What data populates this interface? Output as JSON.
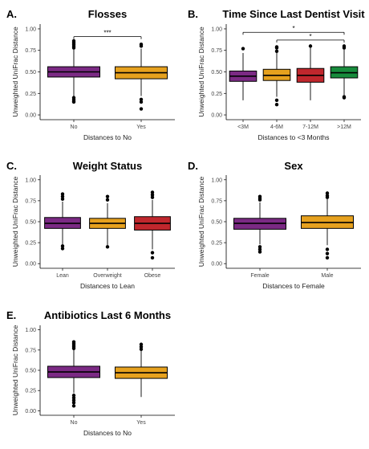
{
  "chart_data": [
    {
      "type": "box",
      "letter": "A.",
      "title": "Flosses",
      "xlabel": "Distances to No",
      "ylabel": "Unweighted UniFrac Distance",
      "ylim": [
        0,
        1
      ],
      "yticks": [
        "0.00",
        "0.25",
        "0.50",
        "0.75",
        "1.00"
      ],
      "categories": [
        "No",
        "Yes"
      ],
      "colors": [
        "#7b2a84",
        "#e6a11e"
      ],
      "boxes": [
        {
          "whisker_low": 0.22,
          "q1": 0.44,
          "median": 0.5,
          "q3": 0.56,
          "whisker_high": 0.76,
          "outliers_low": [
            0.2,
            0.18,
            0.16,
            0.15
          ],
          "outliers_high": [
            0.78,
            0.8,
            0.82,
            0.84,
            0.86
          ]
        },
        {
          "whisker_low": 0.22,
          "q1": 0.42,
          "median": 0.49,
          "q3": 0.56,
          "whisker_high": 0.77,
          "outliers_low": [
            0.18,
            0.15,
            0.07
          ],
          "outliers_high": [
            0.8,
            0.82
          ]
        }
      ],
      "significance": [
        {
          "from": 0,
          "to": 1,
          "y": 0.91,
          "label": "***"
        }
      ]
    },
    {
      "type": "box",
      "letter": "B.",
      "title": "Time Since Last Dentist Visit",
      "xlabel": "Distances to <3 Months",
      "ylabel": "Unweighted UniFrac Distance",
      "ylim": [
        0,
        1
      ],
      "yticks": [
        "0.00",
        "0.25",
        "0.50",
        "0.75",
        "1.00"
      ],
      "categories": [
        "<3M",
        "4-6M",
        "7-12M",
        ">12M"
      ],
      "colors": [
        "#7b2a84",
        "#e6a11e",
        "#c0272d",
        "#178c3c"
      ],
      "boxes": [
        {
          "whisker_low": 0.17,
          "q1": 0.39,
          "median": 0.45,
          "q3": 0.51,
          "whisker_high": 0.72,
          "outliers_low": [],
          "outliers_high": [
            0.77
          ]
        },
        {
          "whisker_low": 0.21,
          "q1": 0.4,
          "median": 0.46,
          "q3": 0.53,
          "whisker_high": 0.72,
          "outliers_low": [
            0.17,
            0.12
          ],
          "outliers_high": [
            0.74,
            0.78,
            0.79
          ]
        },
        {
          "whisker_low": 0.17,
          "q1": 0.38,
          "median": 0.46,
          "q3": 0.54,
          "whisker_high": 0.78,
          "outliers_low": [],
          "outliers_high": [
            0.8
          ]
        },
        {
          "whisker_low": 0.23,
          "q1": 0.43,
          "median": 0.49,
          "q3": 0.56,
          "whisker_high": 0.76,
          "outliers_low": [
            0.21,
            0.2
          ],
          "outliers_high": [
            0.78,
            0.8
          ]
        }
      ],
      "significance": [
        {
          "from": 0,
          "to": 3,
          "y": 0.96,
          "label": "*"
        },
        {
          "from": 1,
          "to": 3,
          "y": 0.87,
          "label": "*"
        }
      ]
    },
    {
      "type": "box",
      "letter": "C.",
      "title": "Weight Status",
      "xlabel": "Distances to Lean",
      "ylabel": "Unweighted UniFrac Distance",
      "ylim": [
        0,
        1
      ],
      "yticks": [
        "0.00",
        "0.25",
        "0.50",
        "0.75",
        "1.00"
      ],
      "categories": [
        "Lean",
        "Overweight",
        "Obese"
      ],
      "colors": [
        "#7b2a84",
        "#e6a11e",
        "#c0272d"
      ],
      "boxes": [
        {
          "whisker_low": 0.23,
          "q1": 0.42,
          "median": 0.48,
          "q3": 0.55,
          "whisker_high": 0.74,
          "outliers_low": [
            0.21,
            0.18
          ],
          "outliers_high": [
            0.77,
            0.8,
            0.83
          ]
        },
        {
          "whisker_low": 0.22,
          "q1": 0.42,
          "median": 0.48,
          "q3": 0.54,
          "whisker_high": 0.72,
          "outliers_low": [
            0.2
          ],
          "outliers_high": [
            0.76,
            0.8
          ]
        },
        {
          "whisker_low": 0.17,
          "q1": 0.4,
          "median": 0.48,
          "q3": 0.56,
          "whisker_high": 0.76,
          "outliers_low": [
            0.13,
            0.07
          ],
          "outliers_high": [
            0.79,
            0.82,
            0.85
          ]
        }
      ]
    },
    {
      "type": "box",
      "letter": "D.",
      "title": "Sex",
      "xlabel": "Distances to Female",
      "ylabel": "Unweighted UniFrac Distance",
      "ylim": [
        0,
        1
      ],
      "yticks": [
        "0.00",
        "0.25",
        "0.50",
        "0.75",
        "1.00"
      ],
      "categories": [
        "Female",
        "Male"
      ],
      "colors": [
        "#7b2a84",
        "#e6a11e"
      ],
      "boxes": [
        {
          "whisker_low": 0.23,
          "q1": 0.41,
          "median": 0.48,
          "q3": 0.54,
          "whisker_high": 0.73,
          "outliers_low": [
            0.2,
            0.17,
            0.14
          ],
          "outliers_high": [
            0.76,
            0.78,
            0.8
          ]
        },
        {
          "whisker_low": 0.22,
          "q1": 0.42,
          "median": 0.49,
          "q3": 0.57,
          "whisker_high": 0.77,
          "outliers_low": [
            0.17,
            0.12,
            0.07
          ],
          "outliers_high": [
            0.79,
            0.81,
            0.84
          ]
        }
      ]
    },
    {
      "type": "box",
      "letter": "E.",
      "title": "Antibiotics Last 6 Months",
      "xlabel": "Distances to No",
      "ylabel": "Unweighted UniFrac Distance",
      "ylim": [
        0,
        1
      ],
      "yticks": [
        "0.00",
        "0.25",
        "0.50",
        "0.75",
        "1.00"
      ],
      "categories": [
        "No",
        "Yes"
      ],
      "colors": [
        "#7b2a84",
        "#e6a11e"
      ],
      "boxes": [
        {
          "whisker_low": 0.22,
          "q1": 0.41,
          "median": 0.48,
          "q3": 0.55,
          "whisker_high": 0.75,
          "outliers_low": [
            0.19,
            0.16,
            0.13,
            0.1,
            0.06
          ],
          "outliers_high": [
            0.77,
            0.79,
            0.81,
            0.83,
            0.85
          ]
        },
        {
          "whisker_low": 0.17,
          "q1": 0.4,
          "median": 0.47,
          "q3": 0.54,
          "whisker_high": 0.74,
          "outliers_low": [],
          "outliers_high": [
            0.76,
            0.79,
            0.82
          ]
        }
      ]
    }
  ]
}
